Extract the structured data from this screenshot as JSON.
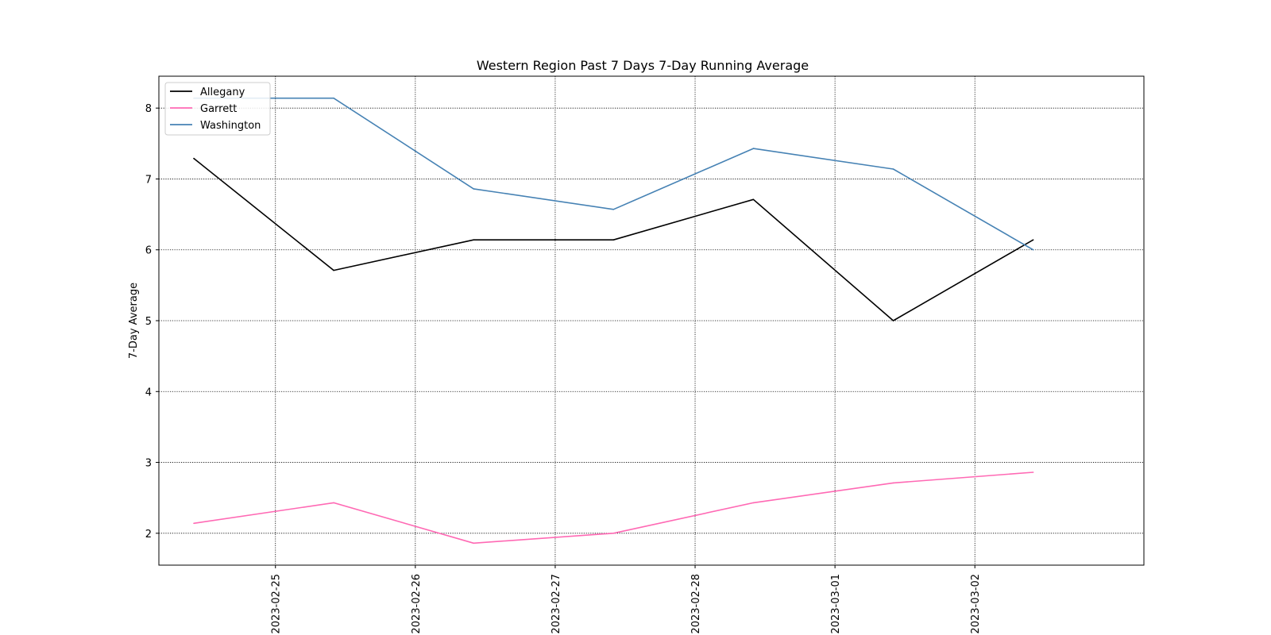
{
  "chart_data": {
    "type": "line",
    "title": "Western Region Past 7 Days 7-Day Running Average",
    "xlabel": "",
    "ylabel": "7-Day Average",
    "x": [
      "2023-02-24T10:00",
      "2023-02-25T10:00",
      "2023-02-26T10:00",
      "2023-02-27T10:00",
      "2023-02-28T10:00",
      "2023-03-01T10:00",
      "2023-03-02T10:00"
    ],
    "x_ticks": [
      "2023-02-25",
      "2023-02-26",
      "2023-02-27",
      "2023-02-28",
      "2023-03-01",
      "2023-03-02"
    ],
    "xlim": [
      "2023-02-24T04:00",
      "2023-03-03T05:00"
    ],
    "ylim": [
      1.55,
      8.45
    ],
    "y_ticks": [
      2,
      3,
      4,
      5,
      6,
      7,
      8
    ],
    "grid": true,
    "legend": "top-left",
    "series": [
      {
        "name": "Allegany",
        "color": "#000000",
        "values": [
          7.29,
          5.71,
          6.14,
          6.14,
          6.71,
          5.0,
          6.14
        ]
      },
      {
        "name": "Garrett",
        "color": "#ff69b4",
        "values": [
          2.14,
          2.43,
          1.86,
          2.0,
          2.43,
          2.71,
          2.86
        ]
      },
      {
        "name": "Washington",
        "color": "#4682b4",
        "values": [
          8.14,
          8.14,
          6.86,
          6.57,
          7.43,
          7.14,
          6.0
        ]
      }
    ]
  }
}
